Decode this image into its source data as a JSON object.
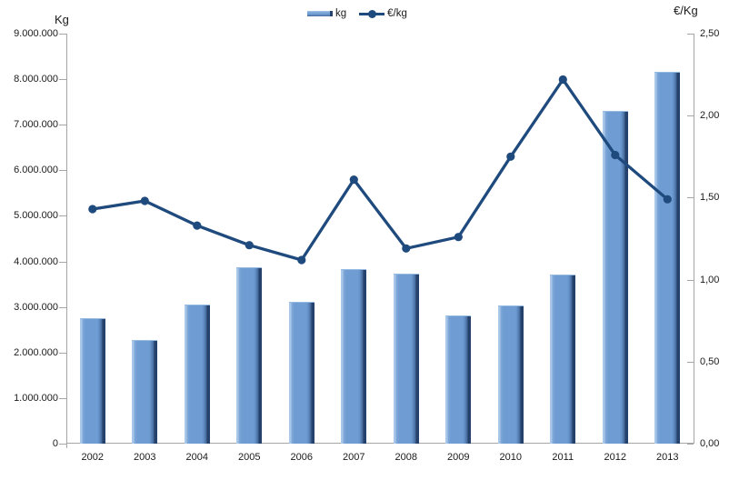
{
  "chart": {
    "left_axis_title": "Kg",
    "right_axis_title": "€/Kg",
    "legend": {
      "kg_label": "kg",
      "eur_label": "€/kg"
    }
  },
  "chart_data": {
    "type": "combo",
    "title": "",
    "categories": [
      "2002",
      "2003",
      "2004",
      "2005",
      "2006",
      "2007",
      "2008",
      "2009",
      "2010",
      "2011",
      "2012",
      "2013"
    ],
    "series": [
      {
        "name": "kg",
        "type": "bar",
        "axis": "left",
        "values": [
          2750000,
          2280000,
          3060000,
          3870000,
          3120000,
          3830000,
          3740000,
          2810000,
          3040000,
          3720000,
          7310000,
          8170000
        ]
      },
      {
        "name": "€/kg",
        "type": "line",
        "axis": "right",
        "values": [
          1.43,
          1.48,
          1.33,
          1.21,
          1.12,
          1.61,
          1.19,
          1.26,
          1.75,
          2.22,
          1.76,
          1.49
        ]
      }
    ],
    "left_axis": {
      "title": "Kg",
      "min": 0,
      "max": 9000000,
      "tick_step": 1000000,
      "tick_labels": [
        "9.000.000",
        "8.000.000",
        "7.000.000",
        "6.000.000",
        "5.000.000",
        "4.000.000",
        "3.000.000",
        "2.000.000",
        "1.000.000",
        "0"
      ]
    },
    "right_axis": {
      "title": "€/Kg",
      "min": 0,
      "max": 2.5,
      "tick_step": 0.5,
      "tick_labels": [
        "2,50",
        "2,00",
        "1,50",
        "1,00",
        "0,50",
        "0,00"
      ]
    },
    "grid": false,
    "legend_position": "top",
    "colors": {
      "bar_fill": "#6f9cd2",
      "bar_edge_light": "#a9c7e8",
      "bar_edge_dark": "#24426b",
      "line": "#1f4a7d",
      "axis_line": "#a6a6a6",
      "text": "#1a1a1a"
    }
  }
}
